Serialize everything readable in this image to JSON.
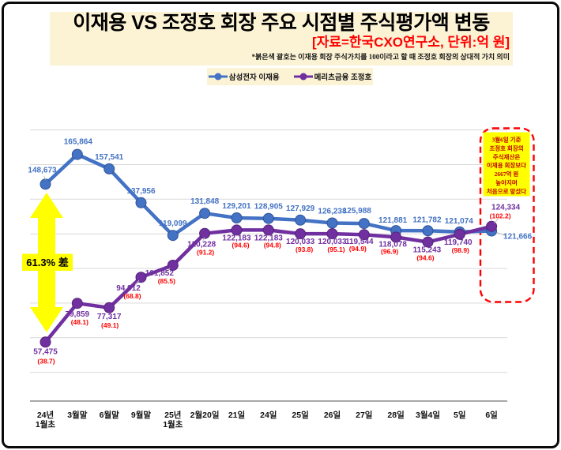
{
  "header": {
    "title": "이재용 VS 조정호 회장 주요 시점별 주식평가액 변동",
    "subtitle": "[자료=한국CXO연구소, 단위:억 원]",
    "note": "*붉은색 괄호는 이재용 회장 주식가치를 100이라고 할 때 조정호 회장의 상대적 가치 의미"
  },
  "legend": {
    "items": [
      {
        "label": "삼성전자 이재용",
        "color": "#4472C4"
      },
      {
        "label": "메리츠금융 조정호",
        "color": "#7030A0"
      }
    ]
  },
  "chart_data": {
    "type": "line",
    "title": "이재용 VS 조정호 회장 주요 시점별 주식평가액 변동",
    "subtitle": "[자료=한국CXO연구소, 단위:억 원]",
    "categories": [
      "24년\n1월초",
      "3월말",
      "6월말",
      "9월말",
      "25년\n1월초",
      "2월20일",
      "21일",
      "24일",
      "25일",
      "26일",
      "27일",
      "28일",
      "3월4일",
      "5일",
      "6일"
    ],
    "series": [
      {
        "name": "삼성전자 이재용",
        "color": "#4472C4",
        "marker_stroke": "#2F5597",
        "values": [
          148673,
          165864,
          157541,
          137956,
          119099,
          131848,
          129201,
          128905,
          127929,
          126238,
          125988,
          121881,
          121782,
          121074,
          121666
        ]
      },
      {
        "name": "메리츠금융 조정호",
        "color": "#7030A0",
        "marker_stroke": "#55237A",
        "values": [
          57475,
          79859,
          77317,
          94912,
          101852,
          120228,
          122183,
          122183,
          120033,
          120033,
          119544,
          118078,
          115243,
          119740,
          124334
        ],
        "ratios": [
          "(38.7)",
          "(48.1)",
          "(49.1)",
          "(68.8)",
          "(85.5)",
          "(91.2)",
          "(94.6)",
          "(94.8)",
          "(93.8)",
          "(95.1)",
          "(94.9)",
          "(96.9)",
          "(94.6)",
          "(98.9)",
          "(102.2)"
        ]
      }
    ],
    "ylim": [
      20000,
      180000
    ],
    "gridline_step": 20000,
    "grid": "horizontal",
    "legend_position": "top",
    "ratio_color": "#FF0000",
    "grid_color": "#D9D9D9",
    "axis_color": "#8C8C8C",
    "annotations": {
      "diff_label": "61.3% 差",
      "diff_arrow_color": "#FFFF00",
      "highlight_note": "3월6일 기준\n조정호 회장의\n주식재산은\n이재용 회장보다\n2667억 원\n높아지며\n처음으로 앞섰다",
      "highlight_note_color": "#C00000",
      "highlight_box_color": "#FF0000",
      "highlight_fill": "#FFFF00"
    }
  }
}
